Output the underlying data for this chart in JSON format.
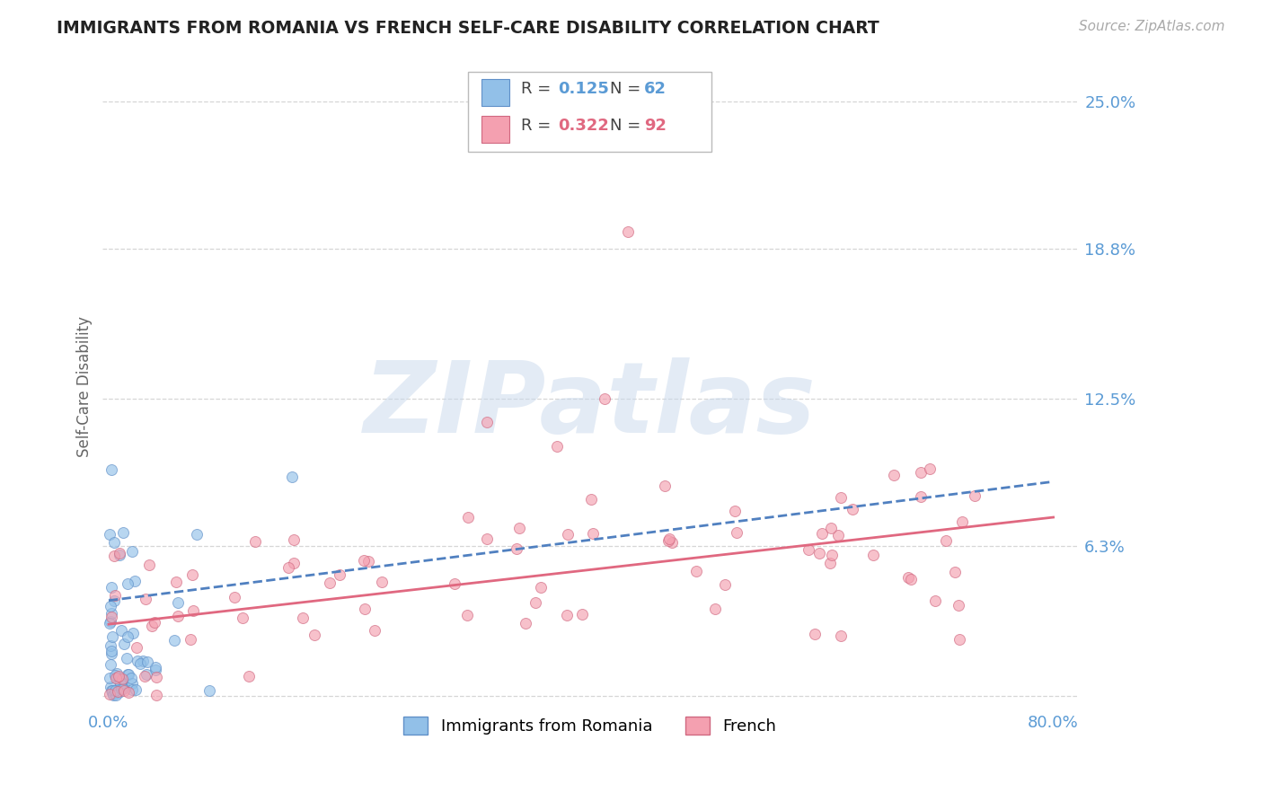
{
  "title": "IMMIGRANTS FROM ROMANIA VS FRENCH SELF-CARE DISABILITY CORRELATION CHART",
  "source_text": "Source: ZipAtlas.com",
  "ylabel": "Self-Care Disability",
  "x_label_blue": "Immigrants from Romania",
  "x_label_pink": "French",
  "xlim": [
    -0.005,
    0.82
  ],
  "ylim": [
    -0.005,
    0.265
  ],
  "yticks": [
    0.0,
    0.063,
    0.125,
    0.188,
    0.25
  ],
  "ytick_labels": [
    "",
    "6.3%",
    "12.5%",
    "18.8%",
    "25.0%"
  ],
  "xtick_labels": [
    "0.0%",
    "80.0%"
  ],
  "legend_r_blue": "0.125",
  "legend_n_blue": "62",
  "legend_r_pink": "0.322",
  "legend_n_pink": "92",
  "blue_color": "#92C0E8",
  "blue_edge": "#6090C8",
  "pink_color": "#F4A0B0",
  "pink_edge": "#D06880",
  "trend_blue_color": "#5080C0",
  "trend_pink_color": "#E06880",
  "watermark": "ZIPatlas",
  "watermark_color": "#C8D8EC",
  "background_color": "#FFFFFF",
  "grid_color": "#CCCCCC",
  "title_color": "#222222",
  "axis_label_color": "#666666",
  "tick_label_color": "#5B9BD5",
  "source_color": "#AAAAAA",
  "trend_blue_y0": 0.04,
  "trend_blue_y1": 0.09,
  "trend_pink_y0": 0.03,
  "trend_pink_y1": 0.075
}
